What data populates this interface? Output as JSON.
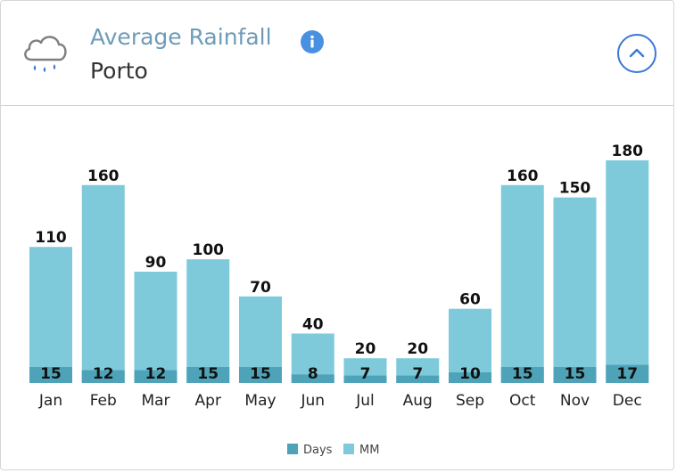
{
  "header": {
    "title": "Average Rainfall",
    "location": "Porto",
    "icon": "rain-cloud-icon"
  },
  "colors": {
    "mm": "#7ecadb",
    "days": "#4fa3b8",
    "title": "#6e9cb8",
    "info": "#4a90e2",
    "accent": "#3a78d4"
  },
  "chart_data": {
    "type": "bar",
    "categories": [
      "Jan",
      "Feb",
      "Mar",
      "Apr",
      "May",
      "Jun",
      "Jul",
      "Aug",
      "Sep",
      "Oct",
      "Nov",
      "Dec"
    ],
    "series": [
      {
        "name": "MM",
        "values": [
          110,
          160,
          90,
          100,
          70,
          40,
          20,
          20,
          60,
          160,
          150,
          180
        ]
      },
      {
        "name": "Days",
        "values": [
          15,
          12,
          12,
          15,
          15,
          8,
          7,
          7,
          10,
          15,
          15,
          17
        ]
      }
    ],
    "legend": [
      "Days",
      "MM"
    ],
    "title": "Average Rainfall",
    "xlabel": "",
    "ylabel": "",
    "ylim": [
      0,
      180
    ]
  }
}
